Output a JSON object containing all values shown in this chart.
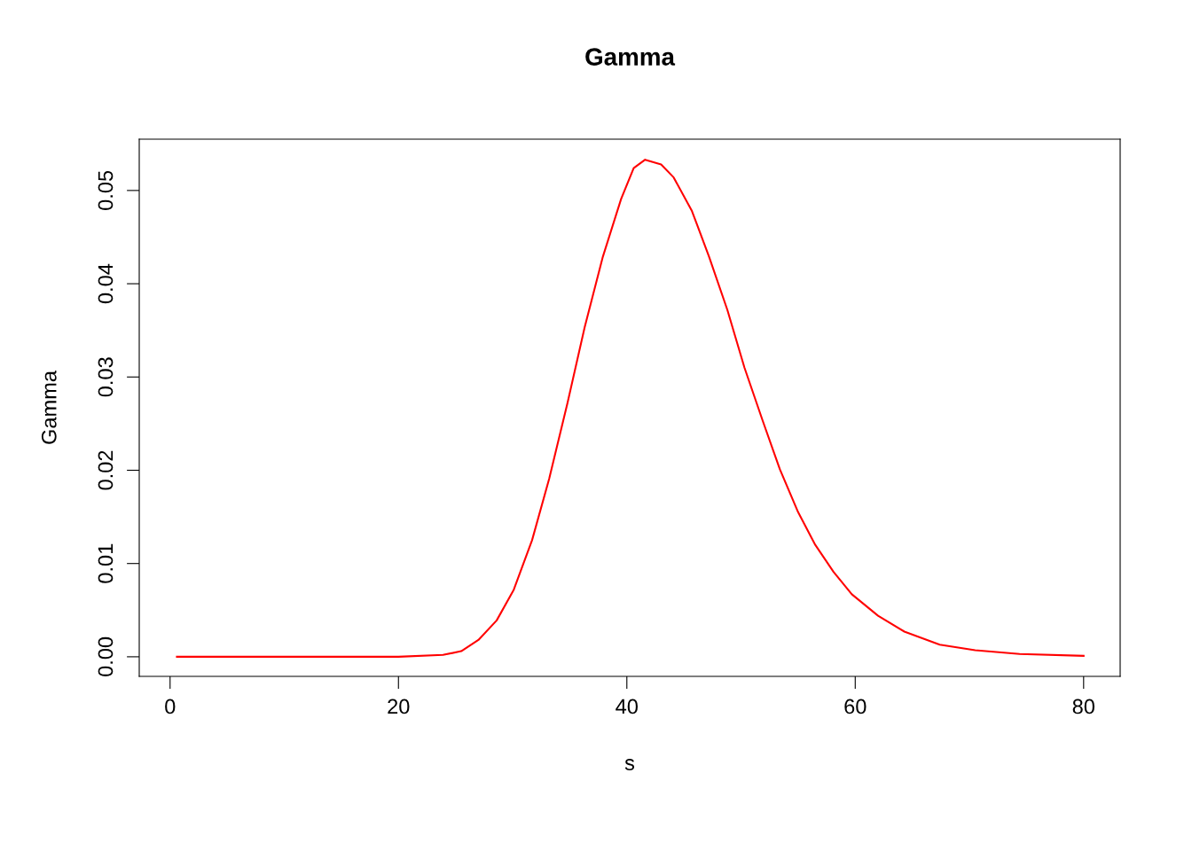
{
  "chart_data": {
    "type": "line",
    "title": "Gamma",
    "xlabel": "s",
    "ylabel": "Gamma",
    "x": [
      0.6,
      10,
      20,
      23.9,
      25.5,
      27.0,
      28.6,
      30.1,
      31.7,
      33.2,
      34.8,
      36.3,
      37.9,
      39.5,
      40.6,
      41.6,
      43.0,
      44.1,
      45.7,
      47.2,
      48.8,
      50.3,
      51.9,
      53.4,
      55.0,
      56.5,
      58.1,
      59.7,
      62.0,
      64.3,
      67.4,
      70.5,
      74.4,
      80
    ],
    "series": [
      {
        "color": "#ff0000",
        "values": [
          0,
          0,
          0,
          0.0002,
          0.0006,
          0.0018,
          0.0039,
          0.0072,
          0.0125,
          0.0191,
          0.0272,
          0.0353,
          0.0429,
          0.0491,
          0.0524,
          0.0533,
          0.0528,
          0.0514,
          0.0478,
          0.0429,
          0.0372,
          0.031,
          0.0253,
          0.0201,
          0.0155,
          0.012,
          0.0091,
          0.0067,
          0.0044,
          0.0027,
          0.0013,
          0.0007,
          0.0003,
          0.0001
        ]
      }
    ],
    "xlim": [
      -2.7,
      83.2
    ],
    "ylim": [
      -0.0021,
      0.0555
    ],
    "xticks": [
      0,
      20,
      40,
      60,
      80
    ],
    "yticks": [
      {
        "value": 0,
        "label": "0.00"
      },
      {
        "value": 0.01,
        "label": "0.01"
      },
      {
        "value": 0.02,
        "label": "0.02"
      },
      {
        "value": 0.03,
        "label": "0.03"
      },
      {
        "value": 0.04,
        "label": "0.04"
      },
      {
        "value": 0.05,
        "label": "0.05"
      }
    ],
    "grid": false,
    "legend": false
  }
}
